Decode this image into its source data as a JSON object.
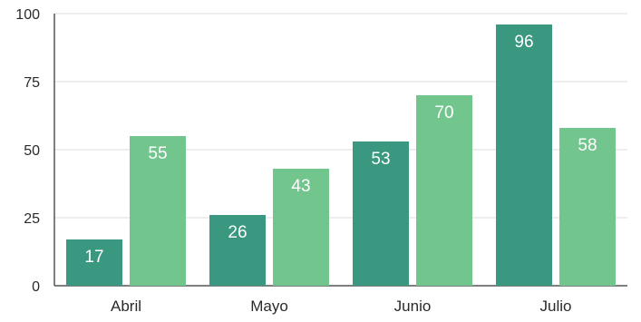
{
  "chart_data": {
    "type": "bar",
    "categories": [
      "Abril",
      "Mayo",
      "Junio",
      "Julio"
    ],
    "series": [
      {
        "values": [
          17,
          26,
          53,
          96
        ],
        "color": "#3a9880"
      },
      {
        "values": [
          55,
          43,
          70,
          58
        ],
        "color": "#72c58d"
      }
    ],
    "y_ticks": [
      "0",
      "25",
      "50",
      "75",
      "100"
    ],
    "ylim": [
      0,
      100
    ],
    "grid": true,
    "data_labels": true,
    "title": "",
    "xlabel": "",
    "ylabel": ""
  }
}
